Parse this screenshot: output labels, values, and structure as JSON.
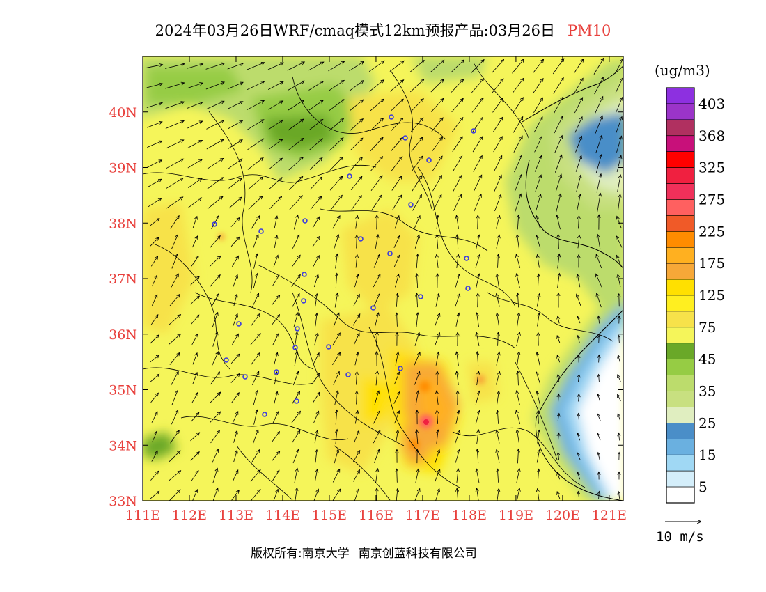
{
  "title": {
    "main": "2024年03月26日WRF/cmaq模式12km预报产品:03月26日",
    "variable": "PM10"
  },
  "map": {
    "lon_range": [
      111,
      121.3
    ],
    "lat_range": [
      33,
      41
    ],
    "lon_ticks": [
      "111E",
      "112E",
      "113E",
      "114E",
      "115E",
      "116E",
      "117E",
      "118E",
      "119E",
      "120E",
      "121E"
    ],
    "lat_ticks": [
      "33N",
      "34N",
      "35N",
      "36N",
      "37N",
      "38N",
      "39N",
      "40N"
    ],
    "tick_color": "#e8403c"
  },
  "legend": {
    "unit": "(ug/m3)",
    "colors": [
      "#8d30e0",
      "#9b34c9",
      "#b03060",
      "#c8107a",
      "#ff0000",
      "#f02040",
      "#f0305a",
      "#ff6060",
      "#f05a28",
      "#ff8c00",
      "#ffb020",
      "#f7a838",
      "#ffe000",
      "#ffef20",
      "#f7e24a",
      "#f5f55a",
      "#6aa828",
      "#96cc44",
      "#bcdc6c",
      "#c8e080",
      "#e0eec0",
      "#4a8ec8",
      "#6ab0e0",
      "#a0d8f4",
      "#d4eefa",
      "#ffffff"
    ],
    "labels": [
      "403",
      "368",
      "325",
      "275",
      "225",
      "175",
      "125",
      "75",
      "45",
      "35",
      "25",
      "15",
      "5"
    ]
  },
  "wind_reference": "10 m/s",
  "copyright": {
    "prefix": "版权所有:",
    "org1": "南京大学",
    "org2": "南京创蓝科技有限公司"
  }
}
